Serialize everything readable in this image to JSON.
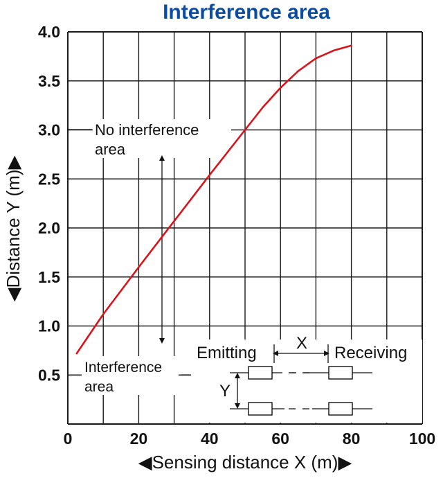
{
  "chart_data": {
    "type": "line",
    "title": "Interference area",
    "xlabel": "Sensing distance X (m)",
    "ylabel": "Distance Y (m)",
    "xlim": [
      0,
      100
    ],
    "ylim": [
      0,
      4.0
    ],
    "x_ticks": [
      "0",
      "20",
      "40",
      "60",
      "80",
      "100"
    ],
    "y_ticks": [
      "0.5",
      "1.0",
      "1.5",
      "2.0",
      "2.5",
      "3.0",
      "3.5",
      "4.0"
    ],
    "grid": true,
    "series": [
      {
        "x": [
          2.5,
          10,
          20,
          30,
          40,
          50,
          55,
          60,
          65,
          70,
          75,
          80
        ],
        "y": [
          0.72,
          1.12,
          1.6,
          2.07,
          2.54,
          3.0,
          3.23,
          3.43,
          3.6,
          3.73,
          3.81,
          3.86
        ]
      }
    ],
    "annotations": {
      "no_interference_line1": "No interference",
      "no_interference_line2": "area",
      "interference_line1": "Interference",
      "interference_line2": "area"
    },
    "inset": {
      "emitting": "Emitting",
      "receiving": "Receiving",
      "x_label": "X",
      "y_label": "Y"
    },
    "colors": {
      "title": "#0b4da2",
      "curve": "#d7141a",
      "grid": "#1a1a1a"
    }
  }
}
